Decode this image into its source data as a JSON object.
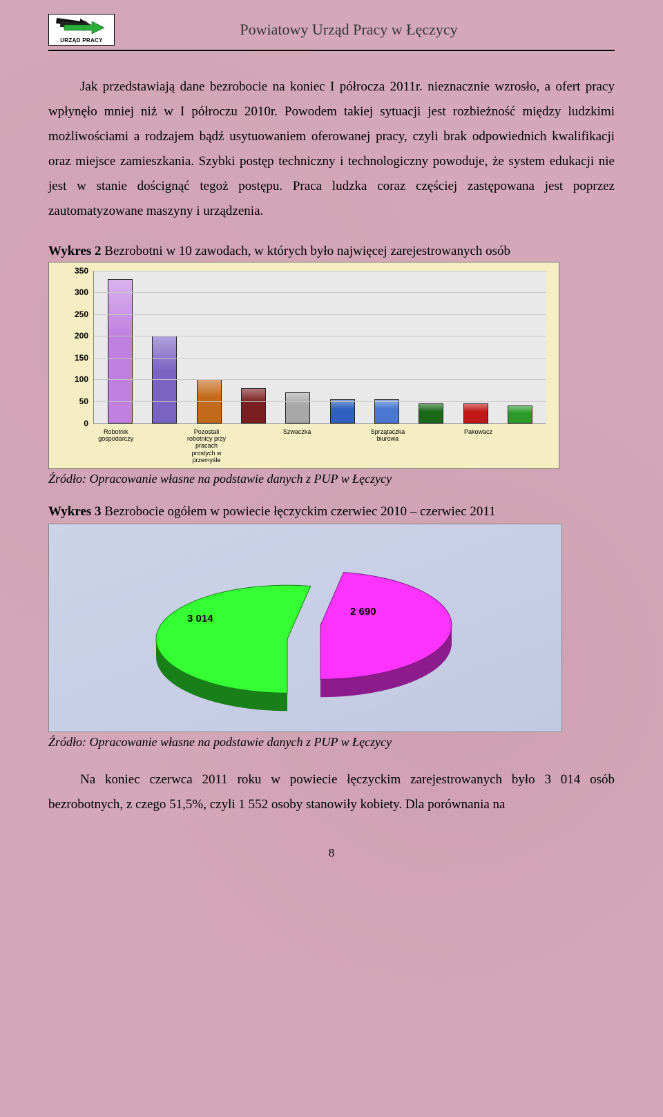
{
  "header": {
    "logo_caption": "URZĄD PRACY",
    "title": "Powiatowy Urząd Pracy w Łęczycy"
  },
  "paragraphs": {
    "p1": "Jak przedstawiają dane bezrobocie na koniec I półrocza 2011r. nieznacznie wzrosło, a ofert pracy wpłynęło mniej niż w I półroczu 2010r. Powodem takiej sytuacji jest rozbieżność między ludzkimi możliwościami a rodzajem bądź usytuowaniem oferowanej pracy, czyli brak odpowiednich kwalifikacji oraz miejsce zamieszkania. Szybki postęp techniczny i technologiczny powoduje, że system edukacji nie jest w stanie doścignąć tegoż postępu. Praca ludzka coraz częściej zastępowana jest poprzez zautomatyzowane maszyny i urządzenia.",
    "p2": "Na koniec czerwca 2011 roku w powiecie łęczyckim zarejestrowanych było 3 014 osób bezrobotnych, z czego 51,5%, czyli 1 552 osoby stanowiły kobiety. Dla porównania na"
  },
  "chart2": {
    "caption_bold": "Wykres 2",
    "caption_rest": "  Bezrobotni w 10 zawodach, w których było najwięcej zarejestrowanych osób",
    "type": "bar",
    "ylim": [
      0,
      350
    ],
    "ytick_step": 50,
    "yticks": [
      0,
      50,
      100,
      150,
      200,
      250,
      300,
      350
    ],
    "background_color": "#f5eec2",
    "plot_background": "#e9e9e9",
    "grid_color": "#c6c6c6",
    "bars": [
      {
        "label": "Robotnik gospodarczy",
        "value": 330,
        "color": "#c080e0"
      },
      {
        "label": "",
        "value": 200,
        "color": "#7a64c2"
      },
      {
        "label": "Pozostali robotnicy przy pracach prostych w przemyśle",
        "value": 100,
        "color": "#c26a1a"
      },
      {
        "label": "",
        "value": 80,
        "color": "#7a1f1f"
      },
      {
        "label": "Szwaczka",
        "value": 70,
        "color": "#a8a8a8"
      },
      {
        "label": "",
        "value": 55,
        "color": "#3060c0"
      },
      {
        "label": "Sprzątaczka biurowa",
        "value": 55,
        "color": "#4a78d0"
      },
      {
        "label": "",
        "value": 45,
        "color": "#1a6a1a"
      },
      {
        "label": "Pakowacz",
        "value": 45,
        "color": "#c01818"
      },
      {
        "label": "",
        "value": 40,
        "color": "#2a9a2a"
      }
    ]
  },
  "source_text": "Źródło: Opracowanie własne na podstawie danych z PUP  w Łęczycy",
  "chart3": {
    "caption_bold": "Wykres 3",
    "caption_rest": " Bezrobocie ogółem w powiecie łęczyckim czerwiec 2010 – czerwiec 2011",
    "type": "pie",
    "background_color": "#c8cee6",
    "slices": [
      {
        "label": "3 014",
        "value": 3014,
        "color": "#33ff33"
      },
      {
        "label": "2 690",
        "value": 2690,
        "color": "#ff33ff"
      }
    ]
  },
  "page_number": "8"
}
